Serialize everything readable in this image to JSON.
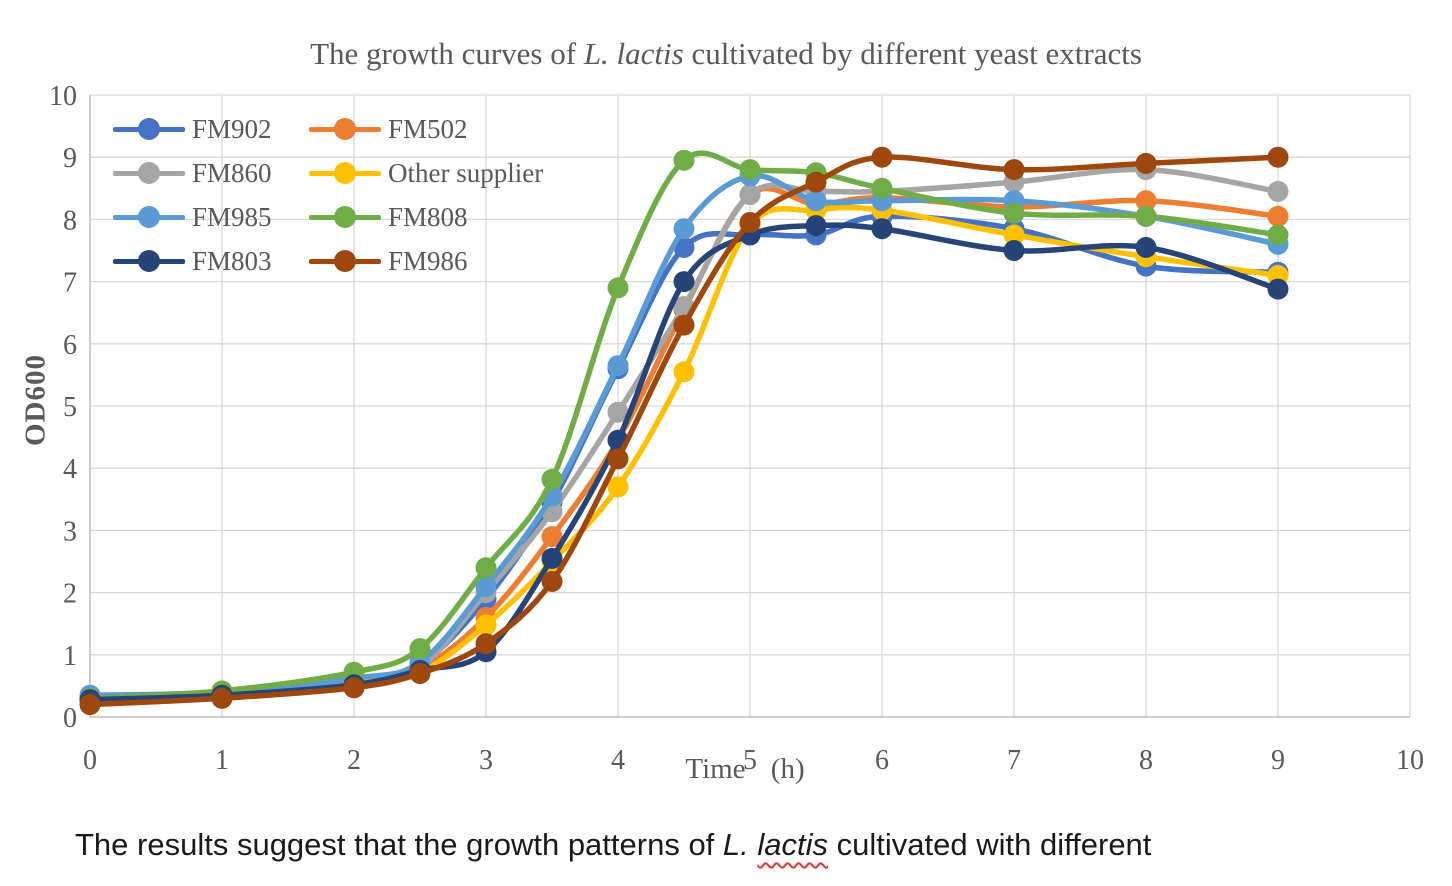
{
  "title": {
    "prefix": "The growth curves of ",
    "italic": "L. lactis",
    "suffix": " cultivated by different yeast extracts"
  },
  "axes": {
    "x_label": "Time (h)",
    "y_label": "OD600",
    "x_ticks": [
      "0",
      "1",
      "2",
      "3",
      "4",
      "5",
      "6",
      "7",
      "8",
      "9",
      "10"
    ],
    "y_ticks": [
      "0",
      "1",
      "2",
      "3",
      "4",
      "5",
      "6",
      "7",
      "8",
      "9",
      "10"
    ],
    "x_range": [
      0,
      10
    ],
    "y_range": [
      0,
      10
    ],
    "grid": true,
    "gridline_color": "#D9D9D9",
    "axis_line_color": "#BFBFBF",
    "text_color": "#595959"
  },
  "chart_data": {
    "type": "line",
    "title": "The growth curves of L. lactis cultivated by different yeast extracts",
    "xlabel": "Time (h)",
    "ylabel": "OD600",
    "xlim": [
      0,
      10
    ],
    "ylim": [
      0,
      10
    ],
    "grid": true,
    "legend": {
      "position": "top-left",
      "columns": 2
    },
    "x": [
      0,
      1,
      2,
      2.5,
      3,
      3.5,
      4,
      4.5,
      5,
      5.5,
      6,
      7,
      8,
      9
    ],
    "series": [
      {
        "name": "FM902",
        "color": "#4472C4",
        "values": [
          0.3,
          0.38,
          0.6,
          0.85,
          1.9,
          3.45,
          5.6,
          7.55,
          7.75,
          7.75,
          8.05,
          7.85,
          7.25,
          7.15
        ]
      },
      {
        "name": "FM502",
        "color": "#ED7D31",
        "values": [
          0.3,
          0.36,
          0.55,
          0.78,
          1.6,
          2.9,
          4.45,
          6.55,
          8.4,
          8.25,
          8.35,
          8.2,
          8.3,
          8.05
        ]
      },
      {
        "name": "FM860",
        "color": "#A5A5A5",
        "values": [
          0.28,
          0.36,
          0.58,
          0.8,
          2.0,
          3.3,
          4.9,
          6.6,
          8.4,
          8.45,
          8.45,
          8.6,
          8.8,
          8.45
        ]
      },
      {
        "name": "Other supplier",
        "color": "#FFC000",
        "values": [
          0.28,
          0.35,
          0.55,
          0.72,
          1.48,
          2.5,
          3.7,
          5.55,
          7.9,
          8.15,
          8.15,
          7.75,
          7.4,
          7.1
        ]
      },
      {
        "name": "FM985",
        "color": "#5B9BD5",
        "values": [
          0.35,
          0.4,
          0.62,
          0.88,
          2.1,
          3.55,
          5.65,
          7.85,
          8.7,
          8.3,
          8.3,
          8.3,
          8.05,
          7.6
        ]
      },
      {
        "name": "FM808",
        "color": "#70AD47",
        "values": [
          0.3,
          0.42,
          0.72,
          1.1,
          2.4,
          3.82,
          6.9,
          8.95,
          8.8,
          8.75,
          8.5,
          8.1,
          8.05,
          7.75
        ]
      },
      {
        "name": "FM803",
        "color": "#264478",
        "values": [
          0.28,
          0.35,
          0.52,
          0.75,
          1.05,
          2.55,
          4.45,
          7.0,
          7.75,
          7.9,
          7.85,
          7.5,
          7.55,
          6.88
        ]
      },
      {
        "name": "FM986",
        "color": "#9E480E",
        "values": [
          0.2,
          0.3,
          0.47,
          0.7,
          1.18,
          2.18,
          4.15,
          6.3,
          7.95,
          8.6,
          9.0,
          8.8,
          8.9,
          9.0
        ]
      }
    ]
  },
  "caption": {
    "prefix": "The results suggest that the growth patterns of ",
    "genus": "L. ",
    "species": "lactis",
    "suffix": " cultivated with different"
  }
}
